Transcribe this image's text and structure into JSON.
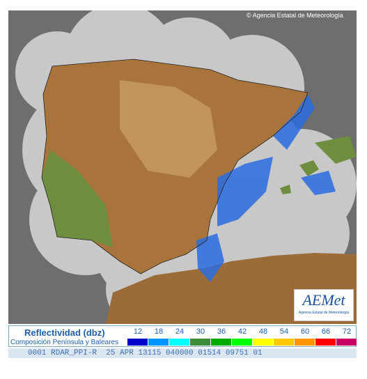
{
  "map": {
    "copyright": "© Agencia Estatal de Meteorología"
  },
  "logo": {
    "name": "AEMet",
    "subtitle": "Agencia Estatal de Meteorología"
  },
  "legend": {
    "title": "Reflectividad (dbz)",
    "subtitle": "Composición Península y Baleares",
    "scale": [
      {
        "value": 12,
        "color": "#0000c8"
      },
      {
        "value": 18,
        "color": "#0096ff"
      },
      {
        "value": 24,
        "color": "#00ffff"
      },
      {
        "value": 30,
        "color": "#3c8c3c"
      },
      {
        "value": 36,
        "color": "#00aa00"
      },
      {
        "value": 42,
        "color": "#00ff00"
      },
      {
        "value": 48,
        "color": "#ffff00"
      },
      {
        "value": 54,
        "color": "#ffc800"
      },
      {
        "value": 60,
        "color": "#ff9600"
      },
      {
        "value": 66,
        "color": "#ff0000"
      },
      {
        "value": 72,
        "color": "#c80064"
      }
    ]
  },
  "status": "0001 RDAR_PPI-R  25 APR 13115 040000 01514 09751 01"
}
